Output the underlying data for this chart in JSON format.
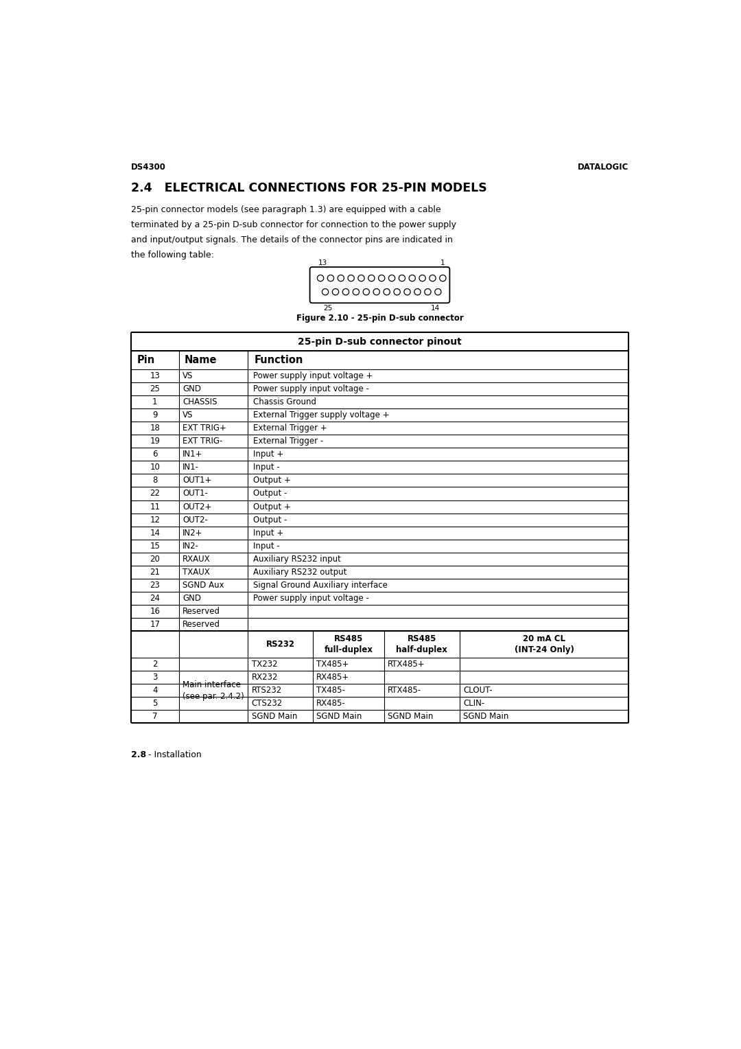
{
  "header_left": "DS4300",
  "header_right": "DATALOGIC",
  "section_title": "2.4   ELECTRICAL CONNECTIONS FOR 25-PIN MODELS",
  "body_text_line1": "25-pin connector models (see paragraph 1.3) are equipped with a cable",
  "body_text_line2": "terminated by a 25-pin D-sub connector for connection to the power supply",
  "body_text_line3": "and input/output signals. The details of the connector pins are indicated in",
  "body_text_line4": "the following table:",
  "figure_caption": "Figure 2.10 - 25-pin D-sub connector",
  "connector_label_13": "13",
  "connector_label_1": "1",
  "connector_label_25": "25",
  "connector_label_14": "14",
  "table_title": "25-pin D-sub connector pinout",
  "col_headers": [
    "Pin",
    "Name",
    "Function"
  ],
  "main_rows": [
    [
      "13",
      "VS",
      "Power supply input voltage +"
    ],
    [
      "25",
      "GND",
      "Power supply input voltage -"
    ],
    [
      "1",
      "CHASSIS",
      "Chassis Ground"
    ],
    [
      "9",
      "VS",
      "External Trigger supply voltage +"
    ],
    [
      "18",
      "EXT TRIG+",
      "External Trigger +"
    ],
    [
      "19",
      "EXT TRIG-",
      "External Trigger -"
    ],
    [
      "6",
      "IN1+",
      "Input +"
    ],
    [
      "10",
      "IN1-",
      "Input -"
    ],
    [
      "8",
      "OUT1+",
      "Output +"
    ],
    [
      "22",
      "OUT1-",
      "Output -"
    ],
    [
      "11",
      "OUT2+",
      "Output +"
    ],
    [
      "12",
      "OUT2-",
      "Output -"
    ],
    [
      "14",
      "IN2+",
      "Input +"
    ],
    [
      "15",
      "IN2-",
      "Input -"
    ],
    [
      "20",
      "RXAUX",
      "Auxiliary RS232 input"
    ],
    [
      "21",
      "TXAUX",
      "Auxiliary RS232 output"
    ],
    [
      "23",
      "SGND Aux",
      "Signal Ground Auxiliary interface"
    ],
    [
      "24",
      "GND",
      "Power supply input voltage -"
    ],
    [
      "16",
      "Reserved",
      ""
    ],
    [
      "17",
      "Reserved",
      ""
    ]
  ],
  "sub_rows_pins": [
    "2",
    "3",
    "4",
    "5",
    "7"
  ],
  "sub_row_interface": [
    "Main interface",
    "(see par. 2.4.2)"
  ],
  "sub_row_rs232": [
    "TX232",
    "RX232",
    "RTS232",
    "CTS232",
    "SGND Main"
  ],
  "sub_row_rs485fd": [
    "TX485+",
    "RX485+",
    "TX485-",
    "RX485-",
    "SGND Main"
  ],
  "sub_row_rs485hd": [
    "RTX485+",
    "",
    "RTX485-",
    "",
    "SGND Main"
  ],
  "sub_row_20ma": [
    "",
    "",
    "CLOUT-",
    "CLIN-",
    "SGND Main"
  ],
  "footer_bold": "2.8",
  "footer_normal": " - Installation",
  "bg_color": "#ffffff",
  "text_color": "#000000"
}
